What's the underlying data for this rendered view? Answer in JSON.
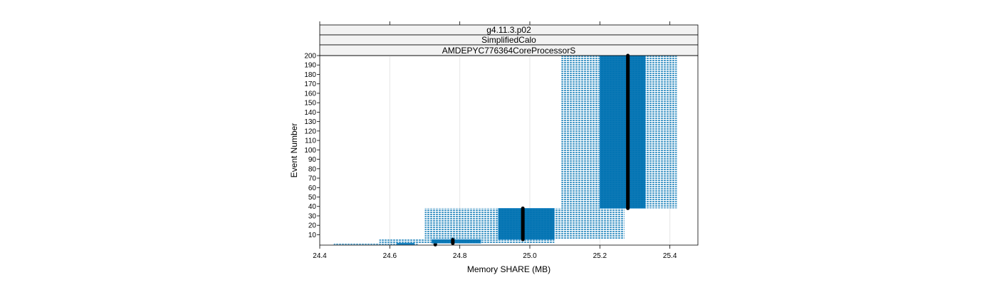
{
  "chart_data": {
    "type": "bar",
    "strips": [
      "g4.11.3.p02",
      "SimplifiedCalo",
      "AMDEPYC776364CoreProcessorS"
    ],
    "xlabel": "Memory SHARE (MB)",
    "ylabel": "Event Number",
    "xlim": [
      24.4,
      25.48
    ],
    "ylim": [
      -1,
      200
    ],
    "x_ticks": [
      "24.4",
      "24.6",
      "24.8",
      "25.0",
      "25.2",
      "25.4"
    ],
    "y_ticks": [
      "10",
      "20",
      "30",
      "40",
      "50",
      "60",
      "70",
      "80",
      "90",
      "100",
      "110",
      "120",
      "130",
      "140",
      "150",
      "160",
      "170",
      "180",
      "190",
      "200"
    ],
    "grid": true,
    "colors": {
      "fill": "#0072b2",
      "median": "#000000",
      "strip_bg": "#f2f2f2",
      "grid": "#e6e6e6"
    },
    "bins": [
      {
        "y_range": [
          0,
          1
        ],
        "outer_range": [
          24.44,
          24.68
        ],
        "inner_range": [
          24.62,
          24.67
        ],
        "median": 24.73
      },
      {
        "y_range": [
          1,
          5
        ],
        "outer_range": [
          24.57,
          25.07
        ],
        "inner_range": [
          24.72,
          24.86
        ],
        "median": 24.78
      },
      {
        "y_range": [
          5,
          38
        ],
        "outer_range": [
          24.7,
          25.27
        ],
        "inner_range": [
          24.91,
          25.07
        ],
        "median": 24.98
      },
      {
        "y_range": [
          38,
          200
        ],
        "outer_range": [
          25.09,
          25.42
        ],
        "inner_range": [
          25.2,
          25.33
        ],
        "median": 25.28
      }
    ]
  }
}
